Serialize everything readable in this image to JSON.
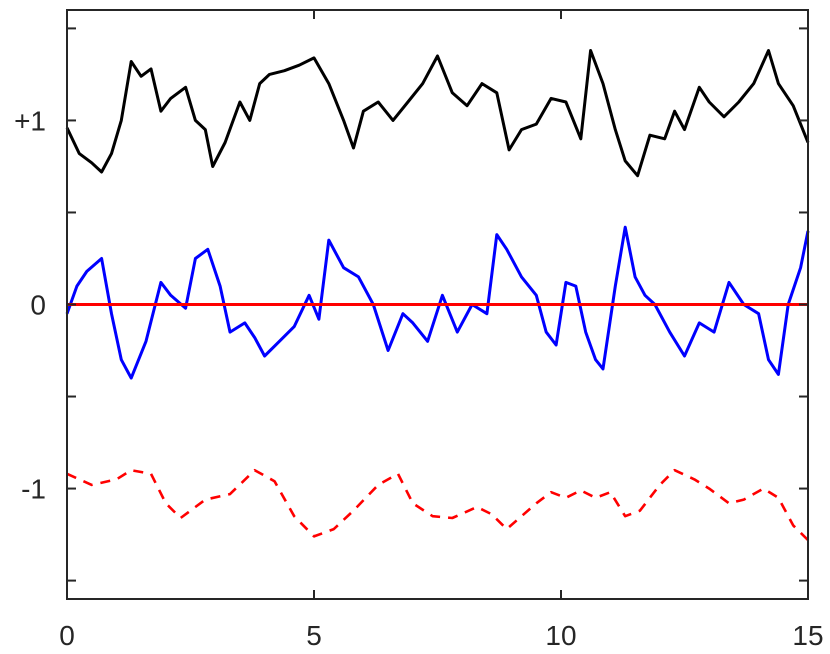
{
  "chart_data": {
    "type": "line",
    "title": "",
    "xlabel": "",
    "ylabel": "",
    "xlim": [
      0,
      15
    ],
    "ylim": [
      -1.6,
      1.6
    ],
    "grid": false,
    "legend": "none",
    "x_ticks": [
      0,
      5,
      10,
      15
    ],
    "x_tick_labels": [
      "0",
      "5",
      "10",
      "15"
    ],
    "y_ticks": [
      -1.5,
      -1,
      -0.5,
      0,
      0.5,
      1,
      1.5
    ],
    "y_tick_labels": [
      "",
      "-1",
      "",
      "0",
      "",
      "+1",
      ""
    ],
    "series": [
      {
        "color": "#000000",
        "style": "solid",
        "x": [
          0,
          0.25,
          0.5,
          0.7,
          0.9,
          1.1,
          1.3,
          1.5,
          1.7,
          1.9,
          2.1,
          2.4,
          2.6,
          2.8,
          2.95,
          3.2,
          3.5,
          3.7,
          3.9,
          4.1,
          4.4,
          4.7,
          5.0,
          5.3,
          5.6,
          5.8,
          6.0,
          6.3,
          6.6,
          6.9,
          7.2,
          7.5,
          7.8,
          8.1,
          8.4,
          8.7,
          8.95,
          9.2,
          9.5,
          9.8,
          10.1,
          10.4,
          10.6,
          10.85,
          11.1,
          11.3,
          11.55,
          11.8,
          12.1,
          12.3,
          12.5,
          12.8,
          13.0,
          13.3,
          13.6,
          13.9,
          14.2,
          14.4,
          14.7,
          15.0
        ],
        "y": [
          0.96,
          0.82,
          0.77,
          0.72,
          0.82,
          1.0,
          1.32,
          1.24,
          1.28,
          1.05,
          1.12,
          1.18,
          1.0,
          0.95,
          0.75,
          0.88,
          1.1,
          1.0,
          1.2,
          1.25,
          1.27,
          1.3,
          1.34,
          1.2,
          1.0,
          0.85,
          1.05,
          1.1,
          1.0,
          1.1,
          1.2,
          1.35,
          1.15,
          1.08,
          1.2,
          1.15,
          0.84,
          0.95,
          0.98,
          1.12,
          1.1,
          0.9,
          1.38,
          1.2,
          0.95,
          0.78,
          0.7,
          0.92,
          0.9,
          1.05,
          0.95,
          1.18,
          1.1,
          1.02,
          1.1,
          1.2,
          1.38,
          1.2,
          1.08,
          0.88
        ]
      },
      {
        "color": "#0000ff",
        "style": "solid",
        "x": [
          0,
          0.2,
          0.4,
          0.7,
          0.9,
          1.1,
          1.3,
          1.6,
          1.9,
          2.1,
          2.4,
          2.6,
          2.85,
          3.1,
          3.3,
          3.6,
          3.8,
          4.0,
          4.3,
          4.6,
          4.9,
          5.1,
          5.3,
          5.6,
          5.9,
          6.2,
          6.5,
          6.8,
          7.0,
          7.3,
          7.6,
          7.9,
          8.2,
          8.5,
          8.7,
          8.9,
          9.2,
          9.5,
          9.7,
          9.9,
          10.1,
          10.3,
          10.5,
          10.7,
          10.85,
          11.1,
          11.3,
          11.5,
          11.7,
          11.9,
          12.2,
          12.5,
          12.8,
          13.1,
          13.4,
          13.7,
          14.0,
          14.2,
          14.4,
          14.6,
          14.85,
          15.0
        ],
        "y": [
          -0.05,
          0.1,
          0.18,
          0.25,
          -0.05,
          -0.3,
          -0.4,
          -0.2,
          0.12,
          0.05,
          -0.02,
          0.25,
          0.3,
          0.1,
          -0.15,
          -0.1,
          -0.18,
          -0.28,
          -0.2,
          -0.12,
          0.05,
          -0.08,
          0.35,
          0.2,
          0.15,
          0.0,
          -0.25,
          -0.05,
          -0.1,
          -0.2,
          0.05,
          -0.15,
          0.0,
          -0.05,
          0.38,
          0.3,
          0.15,
          0.05,
          -0.15,
          -0.22,
          0.12,
          0.1,
          -0.15,
          -0.3,
          -0.35,
          0.1,
          0.42,
          0.15,
          0.05,
          0.0,
          -0.15,
          -0.28,
          -0.1,
          -0.15,
          0.12,
          0.0,
          -0.05,
          -0.3,
          -0.38,
          0.0,
          0.2,
          0.4
        ]
      },
      {
        "color": "#ff0000",
        "style": "solid",
        "x": [
          0,
          1.5,
          3.0,
          4.5,
          6.0,
          7.5,
          9.0,
          10.5,
          12.0,
          13.5,
          15.0
        ],
        "y": [
          0.0,
          0.0,
          0.0,
          0.0,
          0.0,
          0.0,
          0.0,
          0.0,
          0.0,
          0.0,
          0.0
        ]
      },
      {
        "color": "#ff0000",
        "style": "dashed",
        "x": [
          0,
          0.5,
          1.0,
          1.3,
          1.7,
          2.0,
          2.3,
          2.8,
          3.3,
          3.8,
          4.2,
          4.6,
          5.0,
          5.4,
          5.8,
          6.3,
          6.7,
          7.0,
          7.4,
          7.8,
          8.3,
          8.6,
          8.9,
          9.2,
          9.5,
          9.8,
          10.1,
          10.4,
          10.7,
          11.0,
          11.3,
          11.6,
          12.0,
          12.3,
          12.7,
          13.0,
          13.4,
          13.7,
          14.1,
          14.4,
          14.7,
          15.0
        ],
        "y": [
          -0.92,
          -0.98,
          -0.95,
          -0.9,
          -0.92,
          -1.08,
          -1.16,
          -1.06,
          -1.03,
          -0.9,
          -0.96,
          -1.15,
          -1.26,
          -1.22,
          -1.12,
          -0.98,
          -0.92,
          -1.08,
          -1.15,
          -1.16,
          -1.1,
          -1.14,
          -1.22,
          -1.15,
          -1.08,
          -1.02,
          -1.05,
          -1.01,
          -1.05,
          -1.02,
          -1.15,
          -1.12,
          -0.98,
          -0.9,
          -0.95,
          -1.0,
          -1.08,
          -1.06,
          -1.0,
          -1.05,
          -1.2,
          -1.28
        ]
      }
    ]
  }
}
